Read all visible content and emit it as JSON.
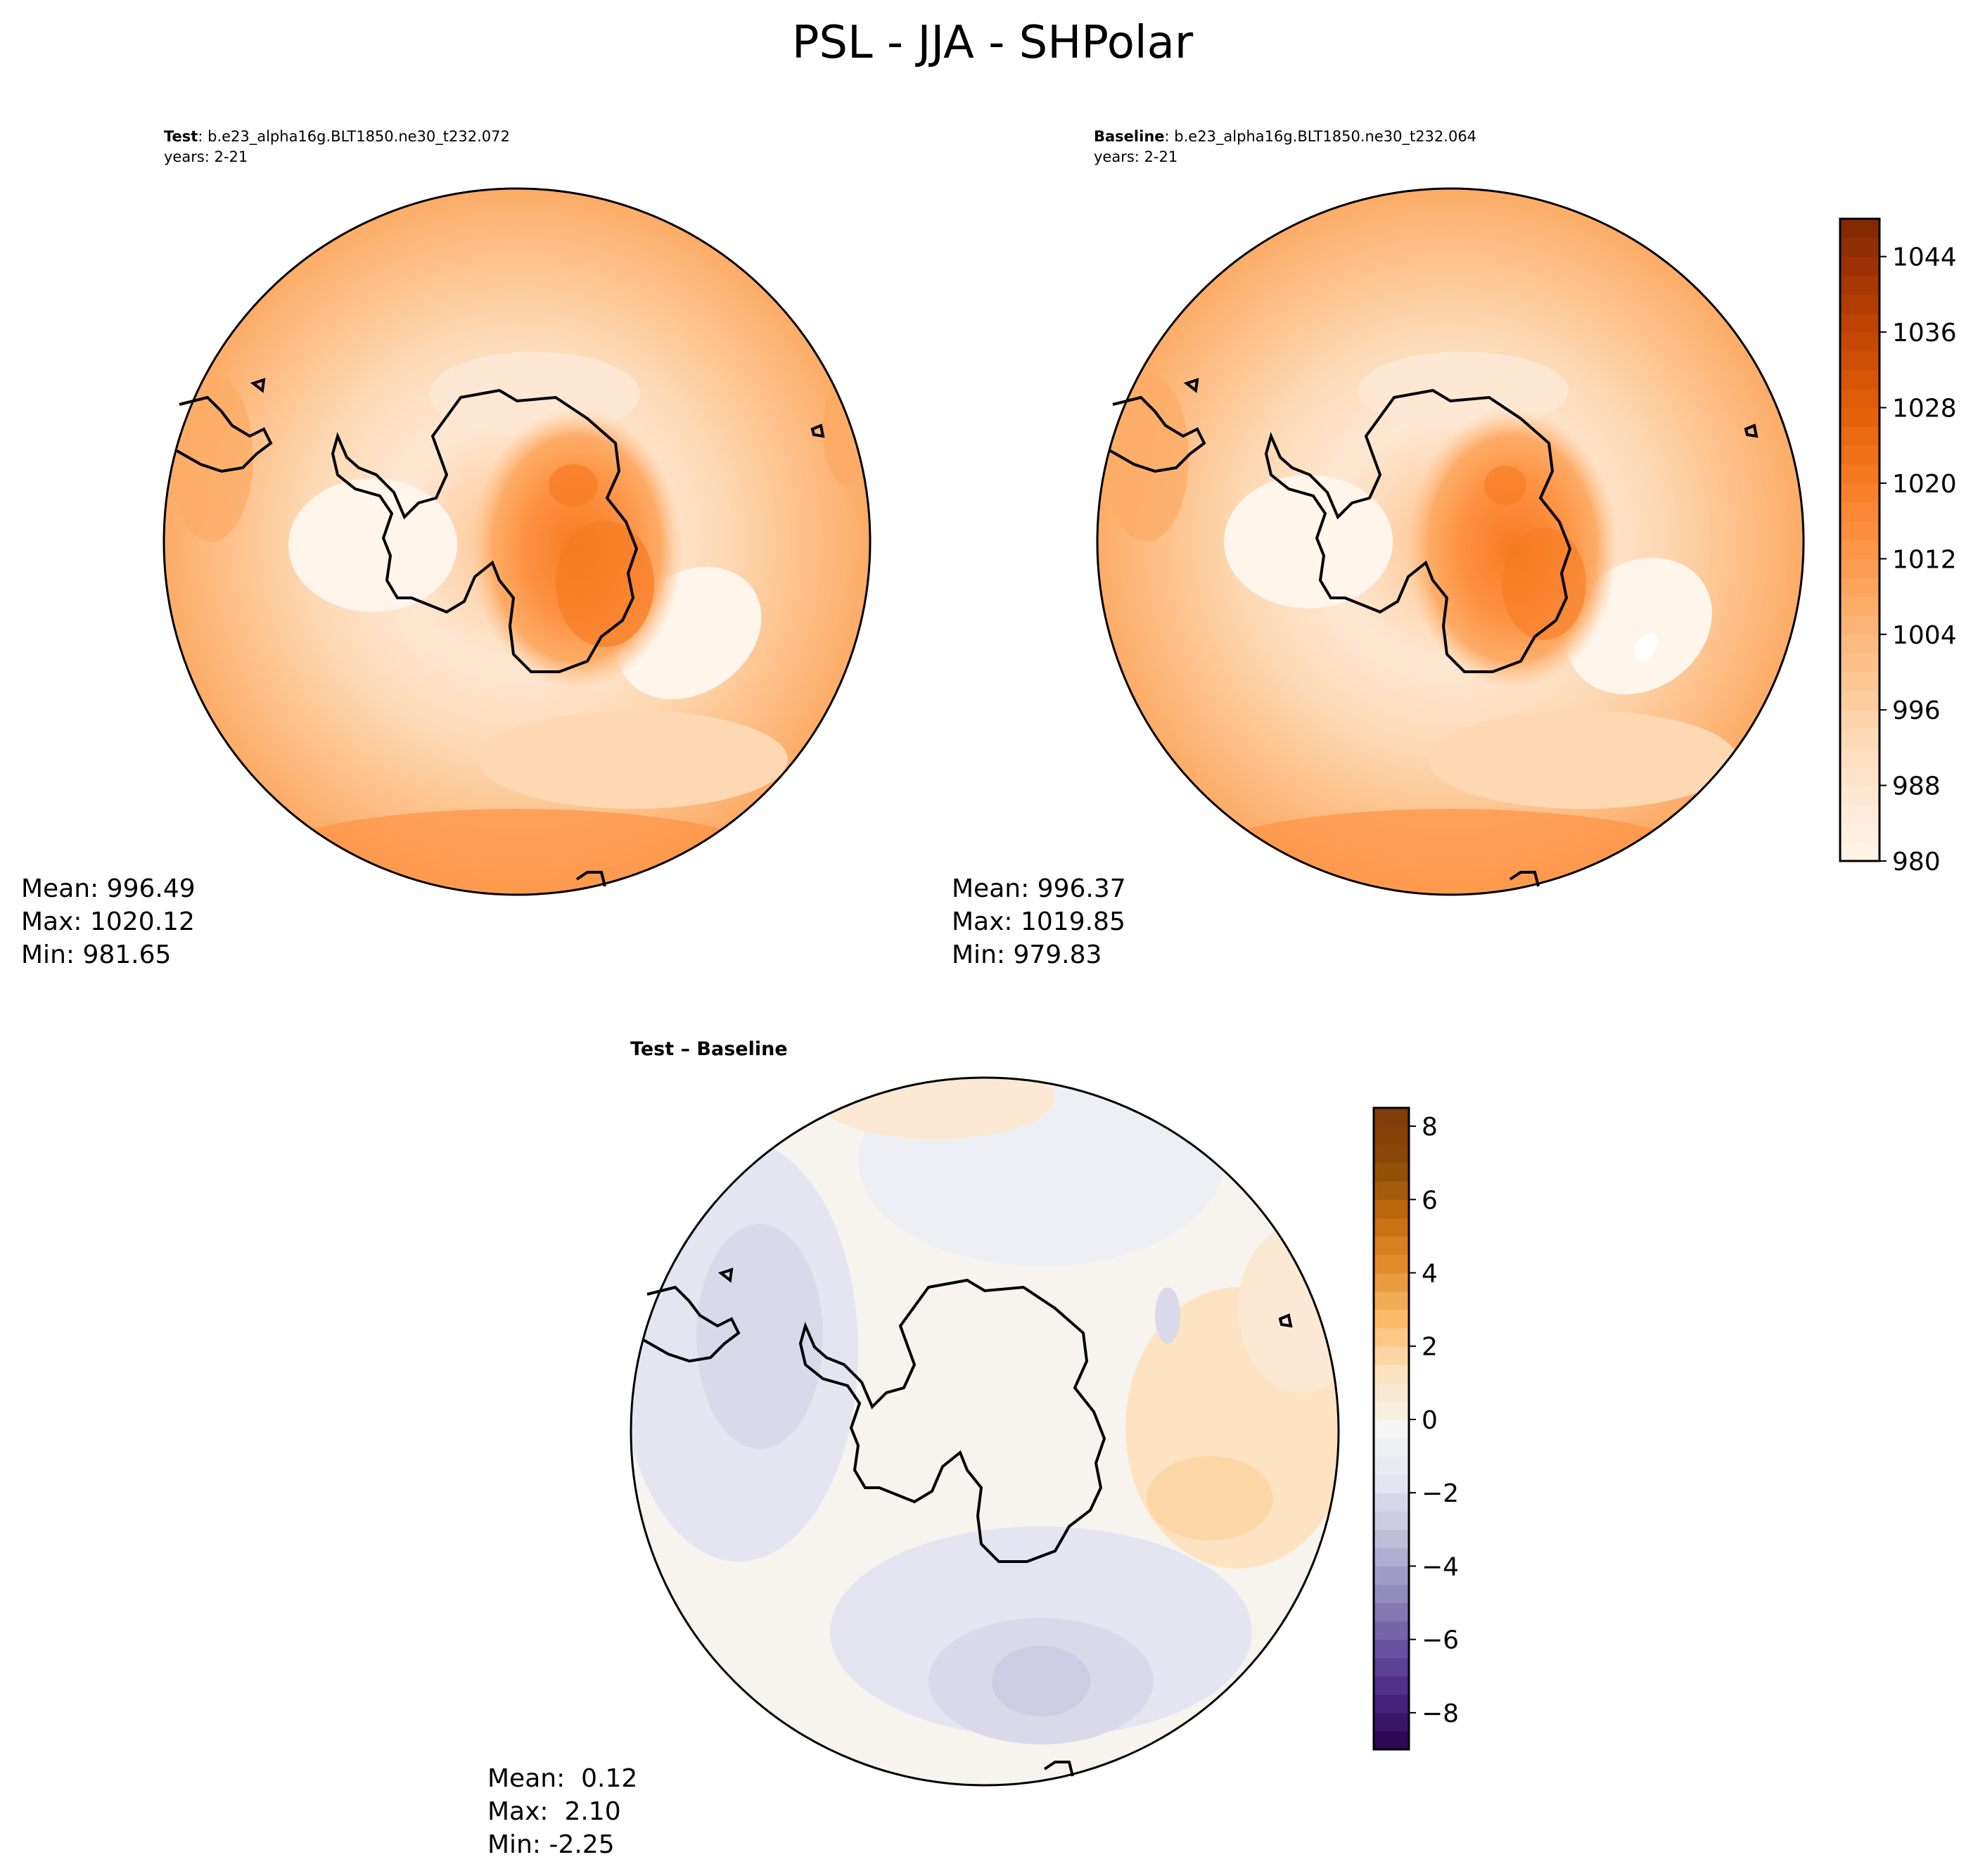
{
  "figure": {
    "title": "PSL - JJA - SHPolar"
  },
  "colors": {
    "coast": "#000000",
    "abs_scale": [
      "#fff5eb",
      "#fee8d3",
      "#fdd8b3",
      "#fdc28c",
      "#fdac67",
      "#fd9243",
      "#f67a22",
      "#e35f0a",
      "#c94b02",
      "#a63603",
      "#7f2704"
    ],
    "diff_scale": [
      "#2d004b",
      "#4b2683",
      "#6b58a5",
      "#9590c0",
      "#c2c0dc",
      "#e4e5f0",
      "#f5f5f5",
      "#fde3c1",
      "#fdbc6e",
      "#e58e2d",
      "#c06a0c",
      "#8a4a07",
      "#7f3b08"
    ]
  },
  "chart_data": [
    {
      "type": "heatmap",
      "name": "test",
      "label_bold": "Test",
      "label_rest": ": b.e23_alpha16g.BLT1850.ne30_t232.072",
      "years": "years: 2-21",
      "stats": [
        "Mean: 996.49",
        "Max: 1020.12",
        "Min: 981.65"
      ],
      "mean": 996.49,
      "max": 1020.12,
      "min": 981.65,
      "clim": [
        980,
        1048
      ]
    },
    {
      "type": "heatmap",
      "name": "baseline",
      "label_bold": "Baseline",
      "label_rest": ": b.e23_alpha16g.BLT1850.ne30_t232.064",
      "years": "years: 2-21",
      "stats": [
        "Mean: 996.37",
        "Max: 1019.85",
        "Min: 979.83"
      ],
      "mean": 996.37,
      "max": 1019.85,
      "min": 979.83,
      "clim": [
        980,
        1048
      ],
      "colorbar_ticks": [
        "980",
        "988",
        "996",
        "1004",
        "1012",
        "1020",
        "1028",
        "1036",
        "1044"
      ],
      "colorbar_range": [
        980,
        1048
      ]
    },
    {
      "type": "heatmap",
      "name": "difference",
      "label": "Test – Baseline",
      "stats": [
        "Mean:  0.12",
        "Max:  2.10",
        "Min: -2.25"
      ],
      "mean": 0.12,
      "max": 2.1,
      "min": -2.25,
      "clim": [
        -9,
        8.5
      ],
      "colorbar_ticks": [
        "−8",
        "−6",
        "−4",
        "−2",
        "0",
        "2",
        "4",
        "6",
        "8"
      ],
      "colorbar_range": [
        -9,
        8.5
      ]
    }
  ]
}
